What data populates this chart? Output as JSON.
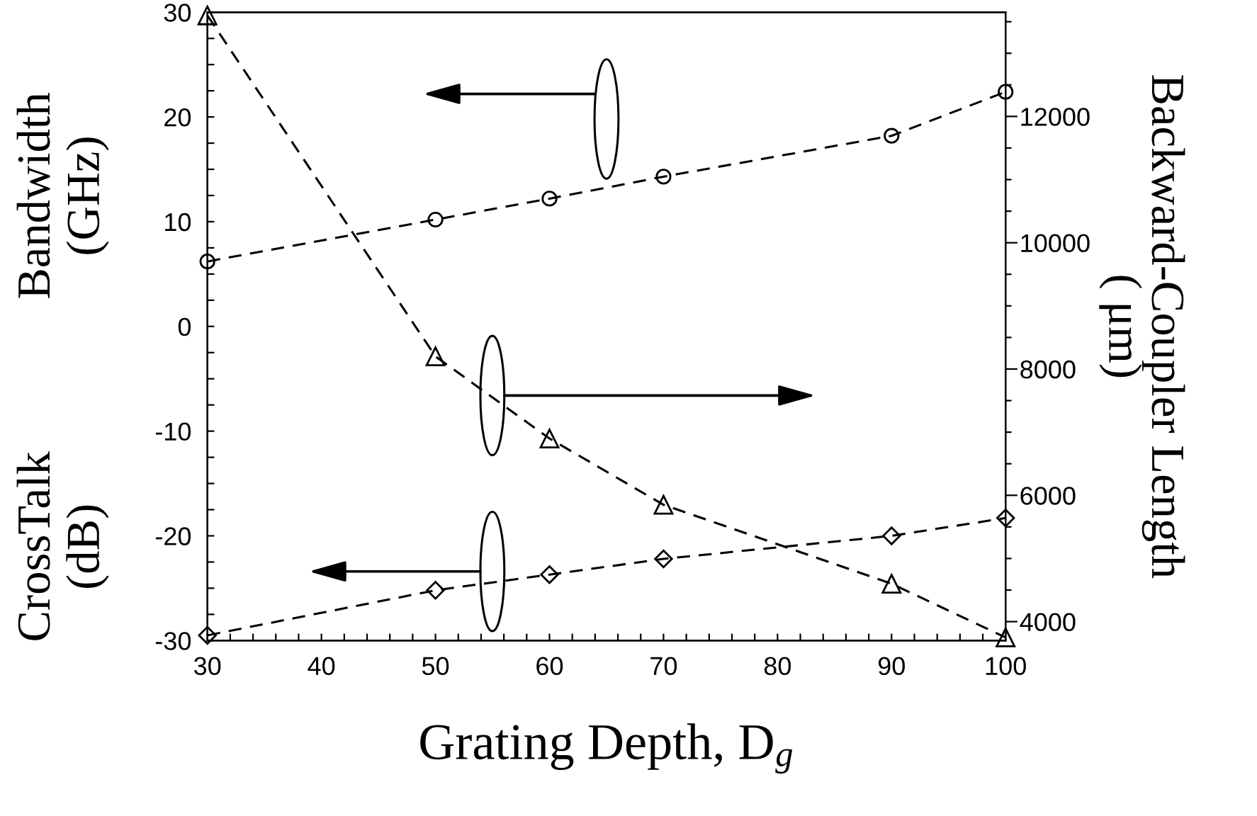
{
  "chart_data": {
    "type": "line",
    "xlabel": "Grating Depth, D$_{g}$",
    "ylabel": "CrossTalk\n(dB)",
    "y2label": "Backward-Coupler Length\n( μm)",
    "annotations": [
      "Bandwidth\n(GHz)"
    ],
    "x": [
      30,
      50,
      60,
      70,
      90,
      100
    ],
    "series": [
      {
        "color": "#000000",
        "marker": "circle",
        "line_style": "dashed",
        "values": [
          6.2,
          10.2,
          12.2,
          14.3,
          18.2,
          22.4
        ]
      },
      {
        "color": "#000000",
        "marker": "diamond",
        "line_style": "dashed",
        "values": [
          -29.5,
          -25.2,
          -23.7,
          -22.2,
          -20,
          -18.3
        ]
      },
      {
        "color": "#000000",
        "marker": "triangle",
        "line_style": "dashed",
        "axis": "y2",
        "values": [
          13600,
          8200,
          6900,
          5850,
          4600,
          3750
        ]
      }
    ],
    "xlim": [
      30,
      100
    ],
    "ylim": [
      -30,
      30
    ],
    "y2lim": [
      3700,
      13650
    ],
    "xticks": [
      30,
      {
        "value": 32,
        "label": null
      },
      {
        "value": 34,
        "label": null
      },
      {
        "value": 36,
        "label": null
      },
      {
        "value": 38,
        "label": null
      },
      40,
      {
        "value": 42,
        "label": null
      },
      {
        "value": 44,
        "label": null
      },
      {
        "value": 46,
        "label": null
      },
      {
        "value": 48,
        "label": null
      },
      50,
      {
        "value": 52,
        "label": null
      },
      {
        "value": 54,
        "label": null
      },
      {
        "value": 56,
        "label": null
      },
      {
        "value": 58,
        "label": null
      },
      60,
      {
        "value": 62,
        "label": null
      },
      {
        "value": 64,
        "label": null
      },
      {
        "value": 66,
        "label": null
      },
      {
        "value": 68,
        "label": null
      },
      70,
      {
        "value": 72,
        "label": null
      },
      {
        "value": 74,
        "label": null
      },
      {
        "value": 76,
        "label": null
      },
      {
        "value": 78,
        "label": null
      },
      80,
      {
        "value": 82,
        "label": null
      },
      {
        "value": 84,
        "label": null
      },
      {
        "value": 86,
        "label": null
      },
      {
        "value": 88,
        "label": null
      },
      90,
      {
        "value": 92,
        "label": null
      },
      {
        "value": 94,
        "label": null
      },
      {
        "value": 96,
        "label": null
      },
      {
        "value": 98,
        "label": null
      },
      100
    ],
    "yticks": [
      -30,
      {
        "value": -27.5,
        "label": null
      },
      {
        "value": -25,
        "label": null
      },
      {
        "value": -22.5,
        "label": null
      },
      -20,
      {
        "value": -17.5,
        "label": null
      },
      {
        "value": -15,
        "label": null
      },
      {
        "value": -12.5,
        "label": null
      },
      -10,
      {
        "value": -7.5,
        "label": null
      },
      {
        "value": -5,
        "label": null
      },
      {
        "value": -2.5,
        "label": null
      },
      0,
      {
        "value": 2.5,
        "label": null
      },
      {
        "value": 5,
        "label": null
      },
      {
        "value": 7.5,
        "label": null
      },
      10,
      {
        "value": 12.5,
        "label": null
      },
      {
        "value": 15,
        "label": null
      },
      {
        "value": 17.5,
        "label": null
      },
      20,
      {
        "value": 22.5,
        "label": null
      },
      {
        "value": 25,
        "label": null
      },
      {
        "value": 27.5,
        "label": null
      },
      30
    ],
    "y2ticks": [
      4000,
      {
        "value": 4500,
        "label": null
      },
      {
        "value": 5000,
        "label": null
      },
      {
        "value": 5500,
        "label": null
      },
      6000,
      {
        "value": 6500,
        "label": null
      },
      {
        "value": 7000,
        "label": null
      },
      {
        "value": 7500,
        "label": null
      },
      8000,
      {
        "value": 8500,
        "label": null
      },
      {
        "value": 9000,
        "label": null
      },
      {
        "value": 9500,
        "label": null
      },
      10000,
      {
        "value": 10500,
        "label": null
      },
      {
        "value": 11000,
        "label": null
      },
      {
        "value": 11500,
        "label": null
      },
      12000,
      {
        "value": 12500,
        "label": null
      },
      {
        "value": 13000,
        "label": null
      },
      {
        "value": 13500,
        "label": null
      }
    ]
  }
}
